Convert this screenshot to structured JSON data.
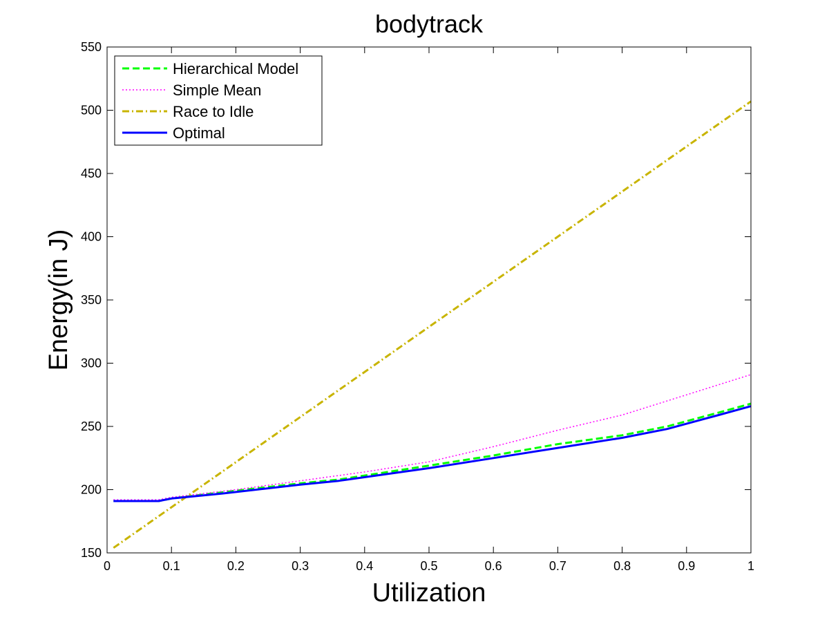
{
  "chart_data": {
    "type": "line",
    "title": "bodytrack",
    "xlabel": "Utilization",
    "ylabel": "Energy(in J)",
    "xlim": [
      0,
      1
    ],
    "ylim": [
      150,
      550
    ],
    "xticks": [
      "0",
      "0.1",
      "0.2",
      "0.3",
      "0.4",
      "0.5",
      "0.6",
      "0.7",
      "0.8",
      "0.9",
      "1"
    ],
    "yticks": [
      "150",
      "200",
      "250",
      "300",
      "350",
      "400",
      "450",
      "500",
      "550"
    ],
    "grid": false,
    "legend_position": "top-left",
    "series": [
      {
        "name": "Hierarchical Model",
        "color": "#00ff00",
        "style": "dashed",
        "x": [
          0.01,
          0.08,
          0.1,
          0.18,
          0.3,
          0.36,
          0.5,
          0.6,
          0.7,
          0.8,
          0.87,
          0.95,
          1.0
        ],
        "y": [
          191,
          191,
          193,
          198,
          205,
          208,
          219,
          227,
          236,
          243,
          250,
          261,
          268
        ]
      },
      {
        "name": "Simple Mean",
        "color": "#ff00ff",
        "style": "dotted",
        "x": [
          0.01,
          0.08,
          0.1,
          0.2,
          0.3,
          0.4,
          0.5,
          0.6,
          0.7,
          0.8,
          0.9,
          1.0
        ],
        "y": [
          192,
          192,
          194,
          200,
          207,
          214,
          222,
          234,
          247,
          259,
          275,
          291
        ]
      },
      {
        "name": "Race to Idle",
        "color": "#c8b400",
        "style": "dashdot",
        "x": [
          0.01,
          1.0
        ],
        "y": [
          154,
          507
        ]
      },
      {
        "name": "Optimal",
        "color": "#0000ff",
        "style": "solid",
        "x": [
          0.01,
          0.08,
          0.1,
          0.18,
          0.3,
          0.36,
          0.5,
          0.6,
          0.7,
          0.8,
          0.87,
          0.95,
          1.0
        ],
        "y": [
          191,
          191,
          193,
          197,
          204,
          207,
          217,
          225,
          233,
          241,
          248,
          259,
          266
        ]
      }
    ]
  }
}
